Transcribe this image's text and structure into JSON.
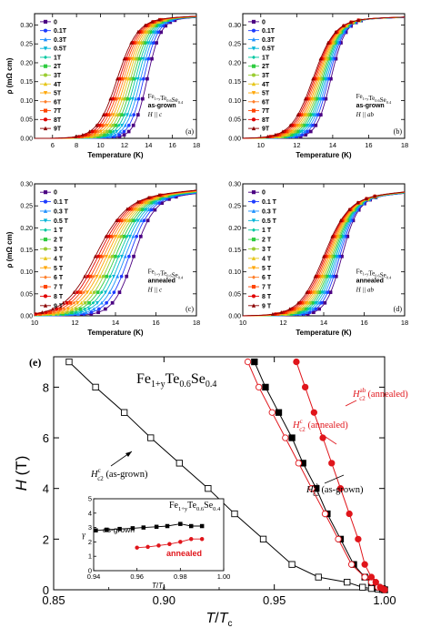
{
  "chart_data": [
    {
      "type": "line",
      "panel_label": "(a)",
      "xlabel": "Temperature (K)",
      "ylabel": "ρ (mΩ cm)",
      "xlim": [
        4.5,
        18
      ],
      "ylim": [
        0,
        0.33
      ],
      "xticks": [
        6,
        8,
        10,
        12,
        14,
        16,
        18
      ],
      "yticks": [
        0.0,
        0.05,
        0.1,
        0.15,
        0.2,
        0.25,
        0.3
      ],
      "annotation": [
        "Fe1+yTe0.6Se0.4",
        "as-grown",
        "H || c"
      ],
      "legend": [
        "0",
        "0.1T",
        "0.3T",
        "0.5T",
        "1T",
        "2T",
        "3T",
        "4T",
        "5T",
        "6T",
        "7T",
        "8T",
        "9T"
      ],
      "transition": {
        "rho_n": 0.315,
        "tc_mid_zero_field": 13.9,
        "tc_mid_9T": 11.4,
        "width": 0.55
      }
    },
    {
      "type": "line",
      "panel_label": "(b)",
      "xlabel": "Temperature (K)",
      "ylabel": "",
      "xlim": [
        9,
        18
      ],
      "ylim": [
        0,
        0.33
      ],
      "xticks": [
        10,
        12,
        14,
        16,
        18
      ],
      "yticks": [
        0.0,
        0.05,
        0.1,
        0.15,
        0.2,
        0.25,
        0.3
      ],
      "annotation": [
        "Fe1+yTe0.6Se0.4",
        "as-grown",
        "H || ab"
      ],
      "legend": [
        "0",
        "0.1T",
        "0.3T",
        "0.5T",
        "1T",
        "2T",
        "3T",
        "4T",
        "5T",
        "6T",
        "7T",
        "8T",
        "9T"
      ],
      "transition": {
        "rho_n": 0.315,
        "tc_mid_zero_field": 13.9,
        "tc_mid_9T": 12.9,
        "width": 0.4
      }
    },
    {
      "type": "line",
      "panel_label": "(c)",
      "xlabel": "Temperature (K)",
      "ylabel": "ρ (mΩ cm)",
      "xlim": [
        10,
        18
      ],
      "ylim": [
        0,
        0.3
      ],
      "xticks": [
        10,
        12,
        14,
        16,
        18
      ],
      "yticks": [
        0.0,
        0.05,
        0.1,
        0.15,
        0.2,
        0.25,
        0.3
      ],
      "annotation": [
        "Fe1+yTe0.6Se0.4",
        "annealed",
        "H || c"
      ],
      "legend": [
        "0",
        "0.1 T",
        "0.3 T",
        "0.5 T",
        "1 T",
        "2 T",
        "3 T",
        "4 T",
        "5 T",
        "6 T",
        "7 T",
        "8 T",
        "9 T"
      ],
      "transition": {
        "rho_n": 0.27,
        "tc_mid_zero_field": 14.9,
        "tc_mid_9T": 13.0,
        "width": 0.5
      }
    },
    {
      "type": "line",
      "panel_label": "(d)",
      "xlabel": "Temperature (K)",
      "ylabel": "",
      "xlim": [
        10,
        18
      ],
      "ylim": [
        0,
        0.3
      ],
      "xticks": [
        10,
        12,
        14,
        16,
        18
      ],
      "yticks": [
        0.0,
        0.05,
        0.1,
        0.15,
        0.2,
        0.25,
        0.3
      ],
      "annotation": [
        "Fe1+yTe0.6Se0.4",
        "annealed",
        "H || ab"
      ],
      "legend": [
        "0",
        "0.1 T",
        "0.3 T",
        "0.5 T",
        "1 T",
        "2 T",
        "3 T",
        "4 T",
        "5 T",
        "6 T",
        "7 T",
        "8 T",
        "9 T"
      ],
      "transition": {
        "rho_n": 0.27,
        "tc_mid_zero_field": 14.9,
        "tc_mid_9T": 14.0,
        "width": 0.4
      }
    },
    {
      "type": "scatter",
      "panel_label": "(e)",
      "title": "Fe1+yTe0.6Se0.4",
      "xlabel": "T/Tc",
      "ylabel": "H (T)",
      "xlim": [
        0.85,
        1.0
      ],
      "ylim": [
        0,
        9.2
      ],
      "xticks": [
        "0.85",
        "0.90",
        "0.95",
        "1.00"
      ],
      "yticks": [
        0,
        2,
        4,
        6,
        8
      ],
      "series": [
        {
          "name": "Hc2^c (as-grown)",
          "marker": "open-square",
          "color": "#000000",
          "x": [
            0.857,
            0.869,
            0.882,
            0.894,
            0.907,
            0.92,
            0.932,
            0.945,
            0.958,
            0.97,
            0.983,
            0.99,
            0.994,
            0.997,
            0.999,
            1.0
          ],
          "y": [
            9,
            8,
            7,
            6,
            5,
            4,
            3,
            2,
            1,
            0.5,
            0.3,
            0.1,
            0.05,
            0.03,
            0.01,
            0
          ]
        },
        {
          "name": "Hc2^ab (as-grown)",
          "marker": "filled-square",
          "color": "#000000",
          "x": [
            0.941,
            0.946,
            0.952,
            0.958,
            0.963,
            0.969,
            0.974,
            0.98,
            0.986,
            0.991,
            0.994,
            0.997,
            0.999,
            1.0
          ],
          "y": [
            9,
            8,
            7,
            6,
            5,
            4,
            3,
            2,
            1,
            0.5,
            0.3,
            0.1,
            0.05,
            0
          ]
        },
        {
          "name": "Hc2^c (annealed)",
          "marker": "open-circle",
          "color": "#e0151b",
          "x": [
            0.938,
            0.943,
            0.949,
            0.955,
            0.961,
            0.967,
            0.973,
            0.979,
            0.985,
            0.991,
            0.994,
            0.997,
            0.999,
            1.0
          ],
          "y": [
            9,
            8,
            7,
            6,
            5,
            4,
            3,
            2,
            1,
            0.5,
            0.3,
            0.1,
            0.05,
            0
          ]
        },
        {
          "name": "Hc2^ab (annealed)",
          "marker": "filled-circle",
          "color": "#e0151b",
          "x": [
            0.96,
            0.964,
            0.968,
            0.972,
            0.976,
            0.98,
            0.984,
            0.988,
            0.991,
            0.994,
            0.996,
            0.998,
            0.999,
            1.0
          ],
          "y": [
            9,
            8,
            7,
            6,
            5,
            4,
            3,
            2,
            1,
            0.5,
            0.3,
            0.1,
            0.05,
            0
          ]
        }
      ],
      "labels": {
        "title_main": "Fe",
        "title_sub1": "1+y",
        "title_mid": "Te",
        "title_sub2": "0.6",
        "title_mid2": "Se",
        "title_sub3": "0.4",
        "asgrown_c_a": "H",
        "asgrown_c_sup": "c",
        "asgrown_c_sub": "c2",
        "asgrown_c_tail": " (as-grown)",
        "asgrown_ab_a": "H",
        "asgrown_ab_sup": "ab",
        "asgrown_ab_sub": "c2",
        "asgrown_ab_tail": " (as-grown)",
        "ann_c_a": "H",
        "ann_c_sup": "c",
        "ann_c_sub": "c2",
        "ann_c_tail": " (annealed)",
        "ann_ab_a": "H",
        "ann_ab_sup": "ab",
        "ann_ab_sub": "c2",
        "ann_ab_tail": " (annealed)"
      }
    },
    {
      "type": "line",
      "panel_label": "inset",
      "title": "Fe1+yTe0.6Se0.4",
      "xlabel": "T/Tc",
      "ylabel": "γ",
      "xlim": [
        0.94,
        1.0
      ],
      "ylim": [
        0,
        5
      ],
      "xticks": [
        "0.94",
        "0.96",
        "0.98",
        "1.00"
      ],
      "yticks": [
        0,
        1,
        2,
        3,
        4,
        5
      ],
      "series": [
        {
          "name": "as-grown",
          "color": "#000000",
          "marker": "filled-square",
          "x": [
            0.941,
            0.946,
            0.952,
            0.958,
            0.963,
            0.969,
            0.974,
            0.98,
            0.985,
            0.99
          ],
          "y": [
            2.8,
            2.85,
            2.9,
            2.95,
            3.0,
            3.05,
            3.1,
            3.25,
            3.1,
            3.1
          ]
        },
        {
          "name": "annealed",
          "color": "#e0151b",
          "marker": "filled-circle",
          "x": [
            0.96,
            0.965,
            0.97,
            0.975,
            0.98,
            0.985,
            0.99
          ],
          "y": [
            1.6,
            1.65,
            1.75,
            1.85,
            2.0,
            2.2,
            2.2
          ]
        }
      ]
    }
  ]
}
